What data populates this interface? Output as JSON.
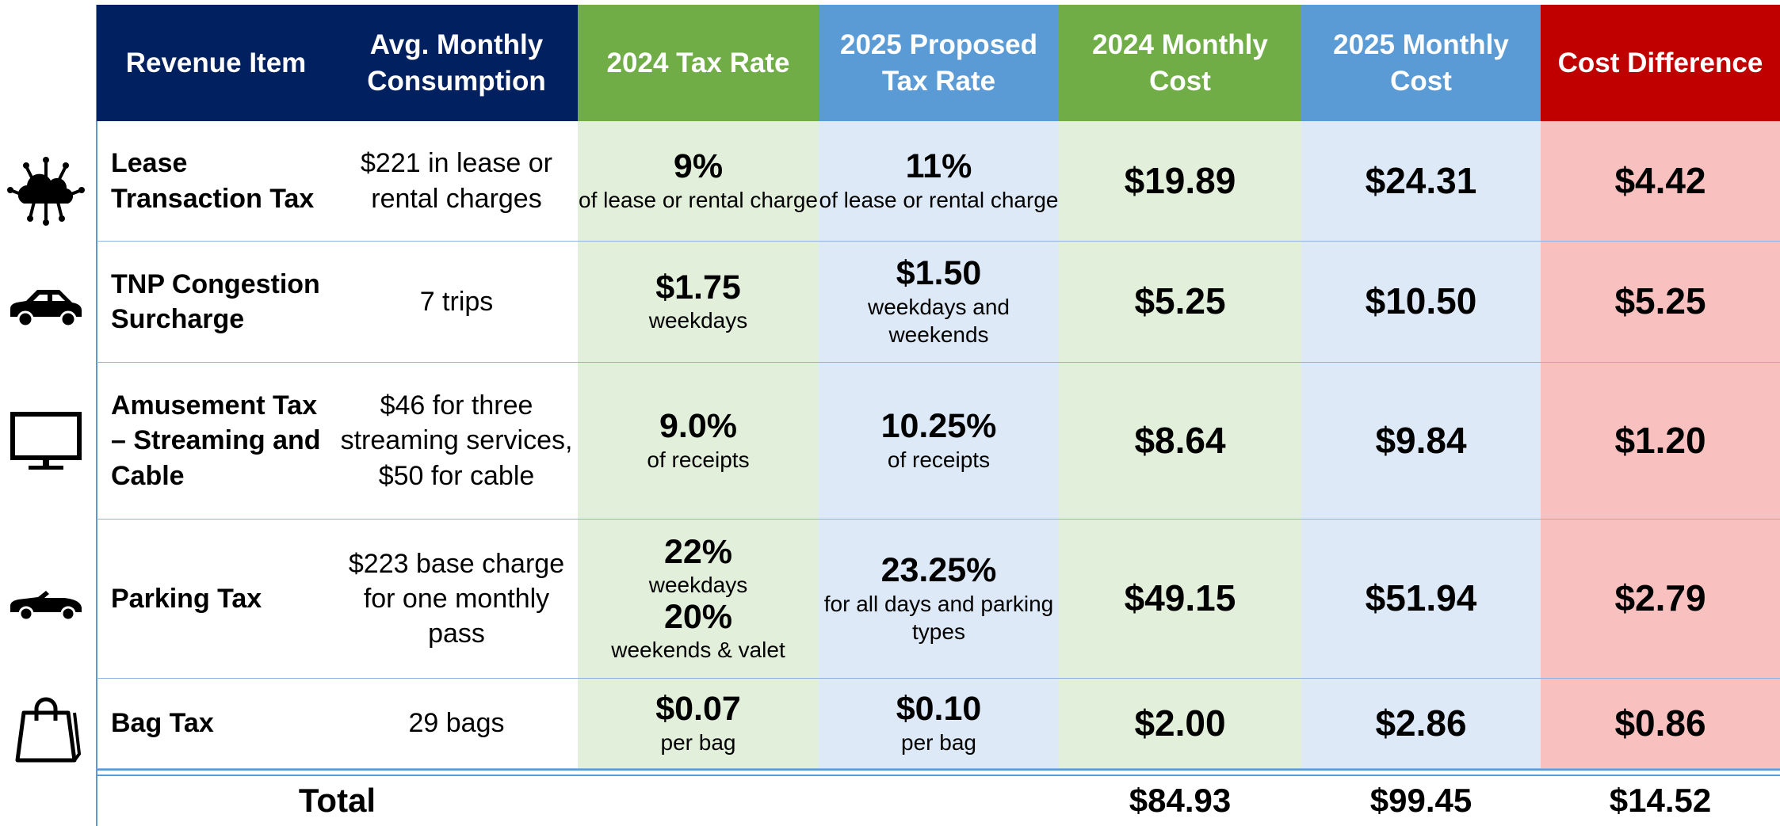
{
  "header": {
    "columns": [
      "Revenue Item",
      "Avg. Monthly Consumption",
      "2024 Tax Rate",
      "2025 Proposed Tax Rate",
      "2024 Monthly Cost",
      "2025 Monthly Cost",
      "Cost Difference"
    ]
  },
  "rows": [
    {
      "item": "Lease Transaction Tax",
      "consumption": [
        "$221 in lease or rental charges"
      ],
      "rate_2024": [
        {
          "value": "9%",
          "note": "of lease or rental charge"
        }
      ],
      "rate_2025": [
        {
          "value": "11%",
          "note": "of lease or rental charge"
        }
      ],
      "cost_2024": "$19.89",
      "cost_2025": "$24.31",
      "difference": "$4.42"
    },
    {
      "item": "TNP Congestion Surcharge",
      "consumption": [
        "7 trips"
      ],
      "rate_2024": [
        {
          "value": "$1.75",
          "note": "weekdays"
        }
      ],
      "rate_2025": [
        {
          "value": "$1.50",
          "note": "weekdays and weekends"
        }
      ],
      "cost_2024": "$5.25",
      "cost_2025": "$10.50",
      "difference": "$5.25"
    },
    {
      "item": "Amusement Tax – Streaming and Cable",
      "consumption": [
        "$46 for three streaming services,",
        "$50 for cable"
      ],
      "rate_2024": [
        {
          "value": "9.0%",
          "note": "of receipts"
        }
      ],
      "rate_2025": [
        {
          "value": "10.25%",
          "note": "of receipts"
        }
      ],
      "cost_2024": "$8.64",
      "cost_2025": "$9.84",
      "difference": "$1.20"
    },
    {
      "item": "Parking Tax",
      "consumption": [
        "$223 base charge for one monthly pass"
      ],
      "rate_2024": [
        {
          "value": "22%",
          "note": "weekdays"
        },
        {
          "value": "20%",
          "note": "weekends & valet"
        }
      ],
      "rate_2025": [
        {
          "value": "23.25%",
          "note": "for all days and parking types"
        }
      ],
      "cost_2024": "$49.15",
      "cost_2025": "$51.94",
      "difference": "$2.79"
    },
    {
      "item": "Bag Tax",
      "consumption": [
        "29 bags"
      ],
      "rate_2024": [
        {
          "value": "$0.07",
          "note": "per bag"
        }
      ],
      "rate_2025": [
        {
          "value": "$0.10",
          "note": "per bag"
        }
      ],
      "cost_2024": "$2.00",
      "cost_2025": "$2.86",
      "difference": "$0.86"
    }
  ],
  "total": {
    "label": "Total",
    "cost_2024": "$84.93",
    "cost_2025": "$99.45",
    "difference": "$14.52"
  }
}
